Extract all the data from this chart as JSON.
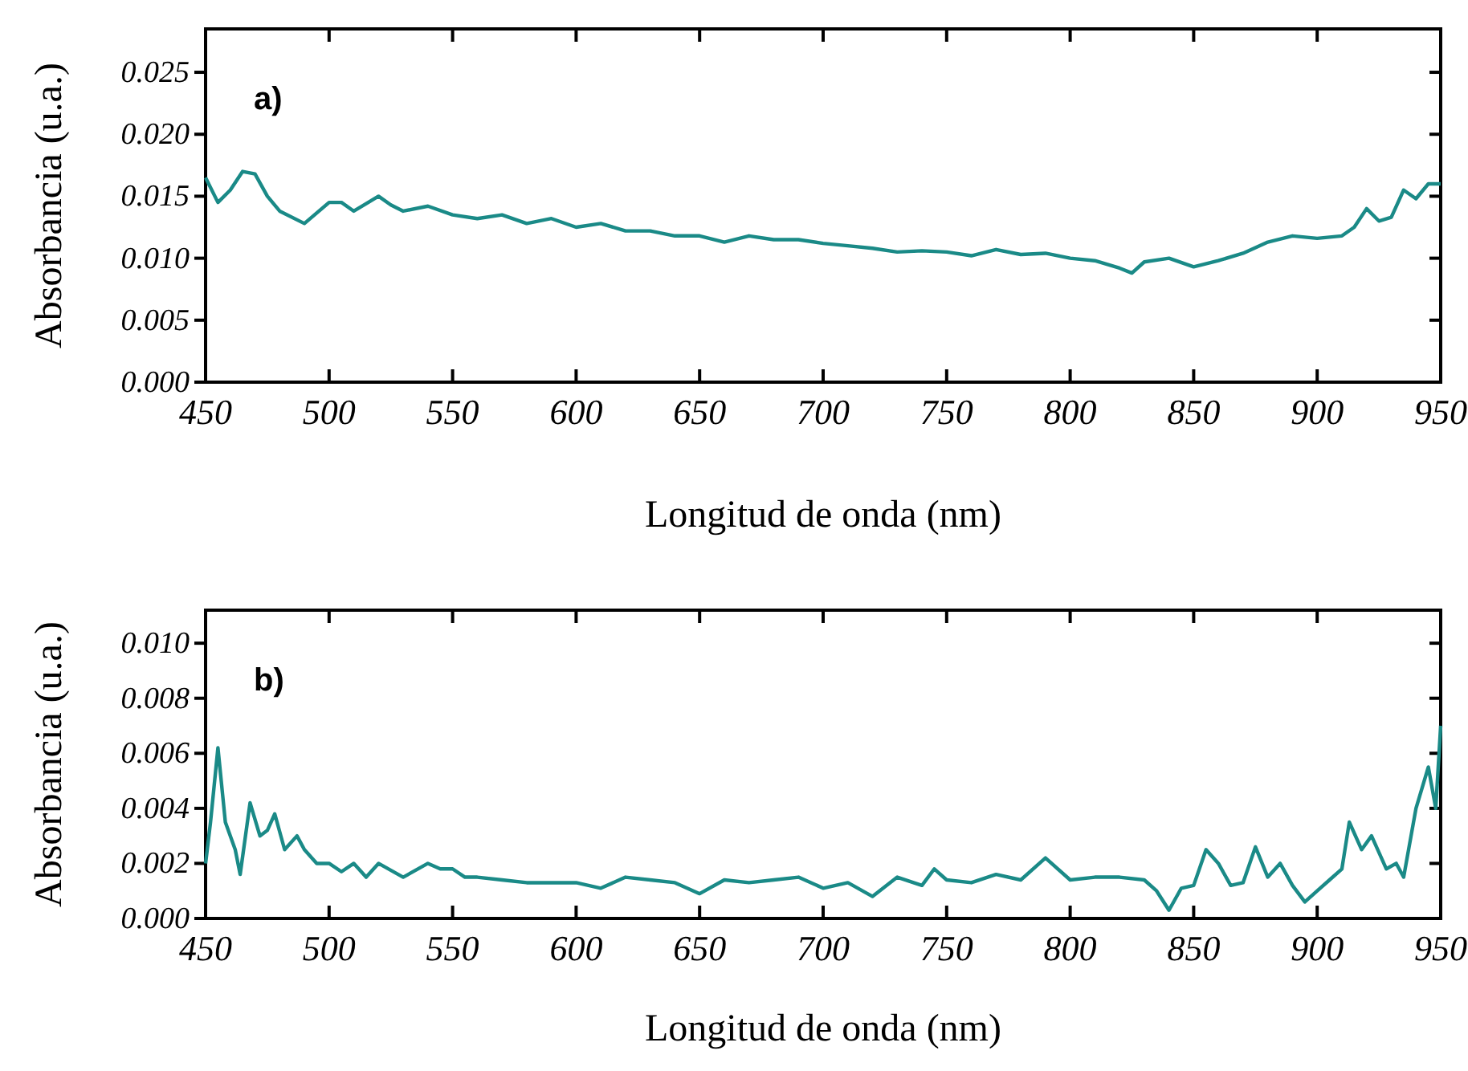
{
  "chart_data": [
    {
      "type": "line",
      "xlabel": "Longitud de onda (nm)",
      "ylabel": "Absorbancia (u.a.)",
      "annotations": [
        "a)"
      ],
      "xlim": [
        450,
        950
      ],
      "xticks": [
        450,
        500,
        550,
        600,
        650,
        700,
        750,
        800,
        850,
        900,
        950
      ],
      "ylim": [
        0,
        0.0285
      ],
      "yticks": [
        {
          "value": 0,
          "label": "0.000"
        },
        {
          "value": 0.005,
          "label": "0.005"
        },
        {
          "value": 0.01,
          "label": "0.010"
        },
        {
          "value": 0.015,
          "label": "0.015"
        },
        {
          "value": 0.02,
          "label": "0.020"
        },
        {
          "value": 0.025,
          "label": "0.025"
        }
      ],
      "x": [
        450,
        455,
        460,
        465,
        470,
        475,
        480,
        490,
        500,
        505,
        510,
        520,
        525,
        530,
        540,
        550,
        560,
        570,
        580,
        590,
        600,
        610,
        620,
        630,
        640,
        650,
        660,
        670,
        680,
        690,
        700,
        710,
        720,
        730,
        740,
        750,
        760,
        770,
        780,
        790,
        800,
        810,
        820,
        825,
        830,
        840,
        850,
        860,
        870,
        880,
        890,
        900,
        910,
        915,
        920,
        925,
        930,
        935,
        940,
        945,
        950
      ],
      "series": [
        {
          "color": "#1a8a87",
          "values": [
            0.0165,
            0.0145,
            0.0155,
            0.017,
            0.0168,
            0.015,
            0.0138,
            0.0128,
            0.0145,
            0.0145,
            0.0138,
            0.015,
            0.0143,
            0.0138,
            0.0142,
            0.0135,
            0.0132,
            0.0135,
            0.0128,
            0.0132,
            0.0125,
            0.0128,
            0.0122,
            0.0122,
            0.0118,
            0.0118,
            0.0113,
            0.0118,
            0.0115,
            0.0115,
            0.0112,
            0.011,
            0.0108,
            0.0105,
            0.0106,
            0.0105,
            0.0102,
            0.0107,
            0.0103,
            0.0104,
            0.01,
            0.0098,
            0.0092,
            0.0088,
            0.0097,
            0.01,
            0.0093,
            0.0098,
            0.0104,
            0.0113,
            0.0118,
            0.0116,
            0.0118,
            0.0125,
            0.014,
            0.013,
            0.0133,
            0.0155,
            0.0148,
            0.016,
            0.016
          ]
        }
      ]
    },
    {
      "type": "line",
      "xlabel": "Longitud de onda (nm)",
      "ylabel": "Absorbancia (u.a.)",
      "annotations": [
        "b)"
      ],
      "xlim": [
        450,
        950
      ],
      "xticks": [
        450,
        500,
        550,
        600,
        650,
        700,
        750,
        800,
        850,
        900,
        950
      ],
      "ylim": [
        0,
        0.0112
      ],
      "yticks": [
        {
          "value": 0,
          "label": "0.000"
        },
        {
          "value": 0.002,
          "label": "0.002"
        },
        {
          "value": 0.004,
          "label": "0.004"
        },
        {
          "value": 0.006,
          "label": "0.006"
        },
        {
          "value": 0.008,
          "label": "0.008"
        },
        {
          "value": 0.01,
          "label": "0.010"
        }
      ],
      "x": [
        450,
        452,
        455,
        458,
        462,
        464,
        468,
        472,
        475,
        478,
        482,
        487,
        490,
        495,
        500,
        505,
        510,
        515,
        520,
        530,
        540,
        545,
        550,
        555,
        560,
        570,
        580,
        590,
        600,
        610,
        620,
        630,
        640,
        650,
        660,
        670,
        680,
        690,
        700,
        710,
        720,
        730,
        740,
        745,
        750,
        760,
        770,
        780,
        790,
        800,
        810,
        820,
        830,
        835,
        840,
        845,
        850,
        855,
        860,
        865,
        870,
        875,
        880,
        885,
        890,
        895,
        900,
        905,
        910,
        913,
        918,
        922,
        928,
        932,
        935,
        940,
        945,
        948,
        950
      ],
      "series": [
        {
          "color": "#1a8a87",
          "values": [
            0.002,
            0.0035,
            0.0062,
            0.0035,
            0.0025,
            0.0016,
            0.0042,
            0.003,
            0.0032,
            0.0038,
            0.0025,
            0.003,
            0.0025,
            0.002,
            0.002,
            0.0017,
            0.002,
            0.0015,
            0.002,
            0.0015,
            0.002,
            0.0018,
            0.0018,
            0.0015,
            0.0015,
            0.0014,
            0.0013,
            0.0013,
            0.0013,
            0.0011,
            0.0015,
            0.0014,
            0.0013,
            0.0009,
            0.0014,
            0.0013,
            0.0014,
            0.0015,
            0.0011,
            0.0013,
            0.0008,
            0.0015,
            0.0012,
            0.0018,
            0.0014,
            0.0013,
            0.0016,
            0.0014,
            0.0022,
            0.0014,
            0.0015,
            0.0015,
            0.0014,
            0.001,
            0.0003,
            0.0011,
            0.0012,
            0.0025,
            0.002,
            0.0012,
            0.0013,
            0.0026,
            0.0015,
            0.002,
            0.0012,
            0.0006,
            0.001,
            0.0014,
            0.0018,
            0.0035,
            0.0025,
            0.003,
            0.0018,
            0.002,
            0.0015,
            0.004,
            0.0055,
            0.004,
            0.007
          ]
        }
      ]
    }
  ]
}
